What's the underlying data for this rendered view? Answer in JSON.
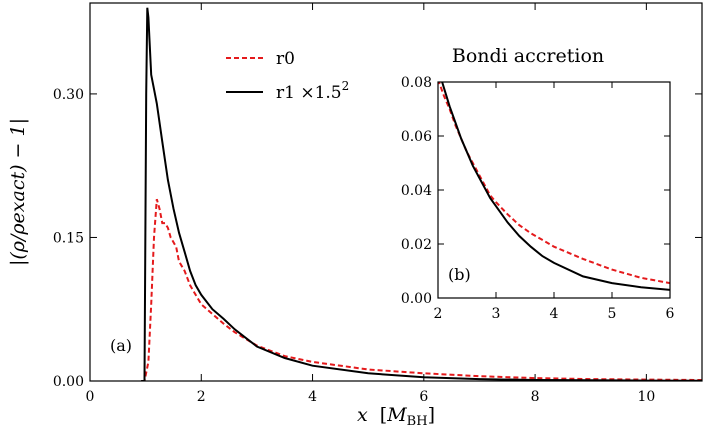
{
  "chart_data": [
    {
      "id": "main",
      "type": "line",
      "panel_label": "(a)",
      "xlabel_main": "x",
      "xlabel_unit_open": "[",
      "xlabel_unit": "M",
      "xlabel_unit_sub": "BH",
      "xlabel_unit_close": "]",
      "ylabel_text": "|(ρ/ρexact) − 1|",
      "xlim": [
        0,
        11
      ],
      "ylim": [
        0,
        0.395
      ],
      "xticks": [
        0,
        2,
        4,
        6,
        8,
        10
      ],
      "xtick_labels": [
        "0",
        "2",
        "4",
        "6",
        "8",
        "10"
      ],
      "yticks": [
        0,
        0.15,
        0.3
      ],
      "ytick_labels": [
        "0.00",
        "0.15",
        "0.30"
      ],
      "legend": {
        "position": "top-center",
        "entries": [
          {
            "series": "r0",
            "label": "r0"
          },
          {
            "series": "r1",
            "label": "r1 ×1.5",
            "superscript": "2"
          }
        ]
      },
      "series": [
        {
          "name": "r0",
          "color": "#e41a1c",
          "style": "dashed",
          "x": [
            0.92,
            0.98,
            1.05,
            1.1,
            1.15,
            1.2,
            1.25,
            1.3,
            1.35,
            1.4,
            1.45,
            1.5,
            1.55,
            1.6,
            1.7,
            1.8,
            1.9,
            2.0,
            2.2,
            2.4,
            2.6,
            2.8,
            3.0,
            3.5,
            4.0,
            5.0,
            6.0,
            7.0,
            8.0,
            9.0,
            10.0,
            11.0
          ],
          "y": [
            0.0,
            0.0,
            0.02,
            0.08,
            0.15,
            0.19,
            0.18,
            0.165,
            0.165,
            0.16,
            0.15,
            0.145,
            0.14,
            0.125,
            0.115,
            0.1,
            0.09,
            0.08,
            0.07,
            0.06,
            0.051,
            0.044,
            0.037,
            0.026,
            0.02,
            0.012,
            0.008,
            0.005,
            0.003,
            0.002,
            0.0015,
            0.001
          ]
        },
        {
          "name": "r1",
          "color": "#000000",
          "style": "solid",
          "x": [
            0.92,
            0.98,
            1.01,
            1.03,
            1.05,
            1.1,
            1.15,
            1.2,
            1.3,
            1.4,
            1.5,
            1.6,
            1.7,
            1.8,
            1.9,
            2.0,
            2.2,
            2.4,
            2.6,
            2.8,
            3.0,
            3.5,
            4.0,
            5.0,
            6.0,
            7.0,
            8.0,
            9.0,
            10.0,
            11.0
          ],
          "y": [
            0.0,
            0.0,
            0.3,
            0.39,
            0.38,
            0.32,
            0.305,
            0.29,
            0.25,
            0.21,
            0.18,
            0.155,
            0.135,
            0.115,
            0.1,
            0.09,
            0.075,
            0.065,
            0.054,
            0.045,
            0.036,
            0.024,
            0.016,
            0.008,
            0.004,
            0.002,
            0.001,
            0.0007,
            0.0004,
            0.0002
          ]
        }
      ]
    },
    {
      "id": "inset",
      "type": "line",
      "title": "Bondi accretion",
      "panel_label": "(b)",
      "xlim": [
        2,
        6
      ],
      "ylim": [
        0,
        0.08
      ],
      "xticks": [
        2,
        3,
        4,
        5,
        6
      ],
      "xtick_labels": [
        "2",
        "3",
        "4",
        "5",
        "6"
      ],
      "yticks": [
        0,
        0.02,
        0.04,
        0.06,
        0.08
      ],
      "ytick_labels": [
        "0.00",
        "0.02",
        "0.04",
        "0.06",
        "0.08"
      ],
      "series": [
        {
          "name": "r0",
          "color": "#e41a1c",
          "style": "dashed",
          "x": [
            2.0,
            2.1,
            2.2,
            2.3,
            2.4,
            2.5,
            2.6,
            2.7,
            2.8,
            2.9,
            3.0,
            3.2,
            3.4,
            3.6,
            3.8,
            4.0,
            4.5,
            5.0,
            5.5,
            6.0
          ],
          "y": [
            0.081,
            0.075,
            0.07,
            0.064,
            0.059,
            0.054,
            0.05,
            0.046,
            0.042,
            0.038,
            0.0355,
            0.031,
            0.027,
            0.024,
            0.0215,
            0.019,
            0.0145,
            0.0105,
            0.0075,
            0.0055
          ]
        },
        {
          "name": "r1",
          "color": "#000000",
          "style": "solid",
          "x": [
            2.0,
            2.1,
            2.2,
            2.3,
            2.4,
            2.5,
            2.6,
            2.7,
            2.8,
            2.9,
            3.0,
            3.2,
            3.4,
            3.6,
            3.8,
            4.0,
            4.5,
            5.0,
            5.5,
            6.0
          ],
          "y": [
            0.085,
            0.078,
            0.071,
            0.065,
            0.059,
            0.054,
            0.049,
            0.045,
            0.041,
            0.037,
            0.034,
            0.028,
            0.023,
            0.019,
            0.0155,
            0.013,
            0.008,
            0.0055,
            0.004,
            0.003
          ]
        }
      ]
    }
  ]
}
